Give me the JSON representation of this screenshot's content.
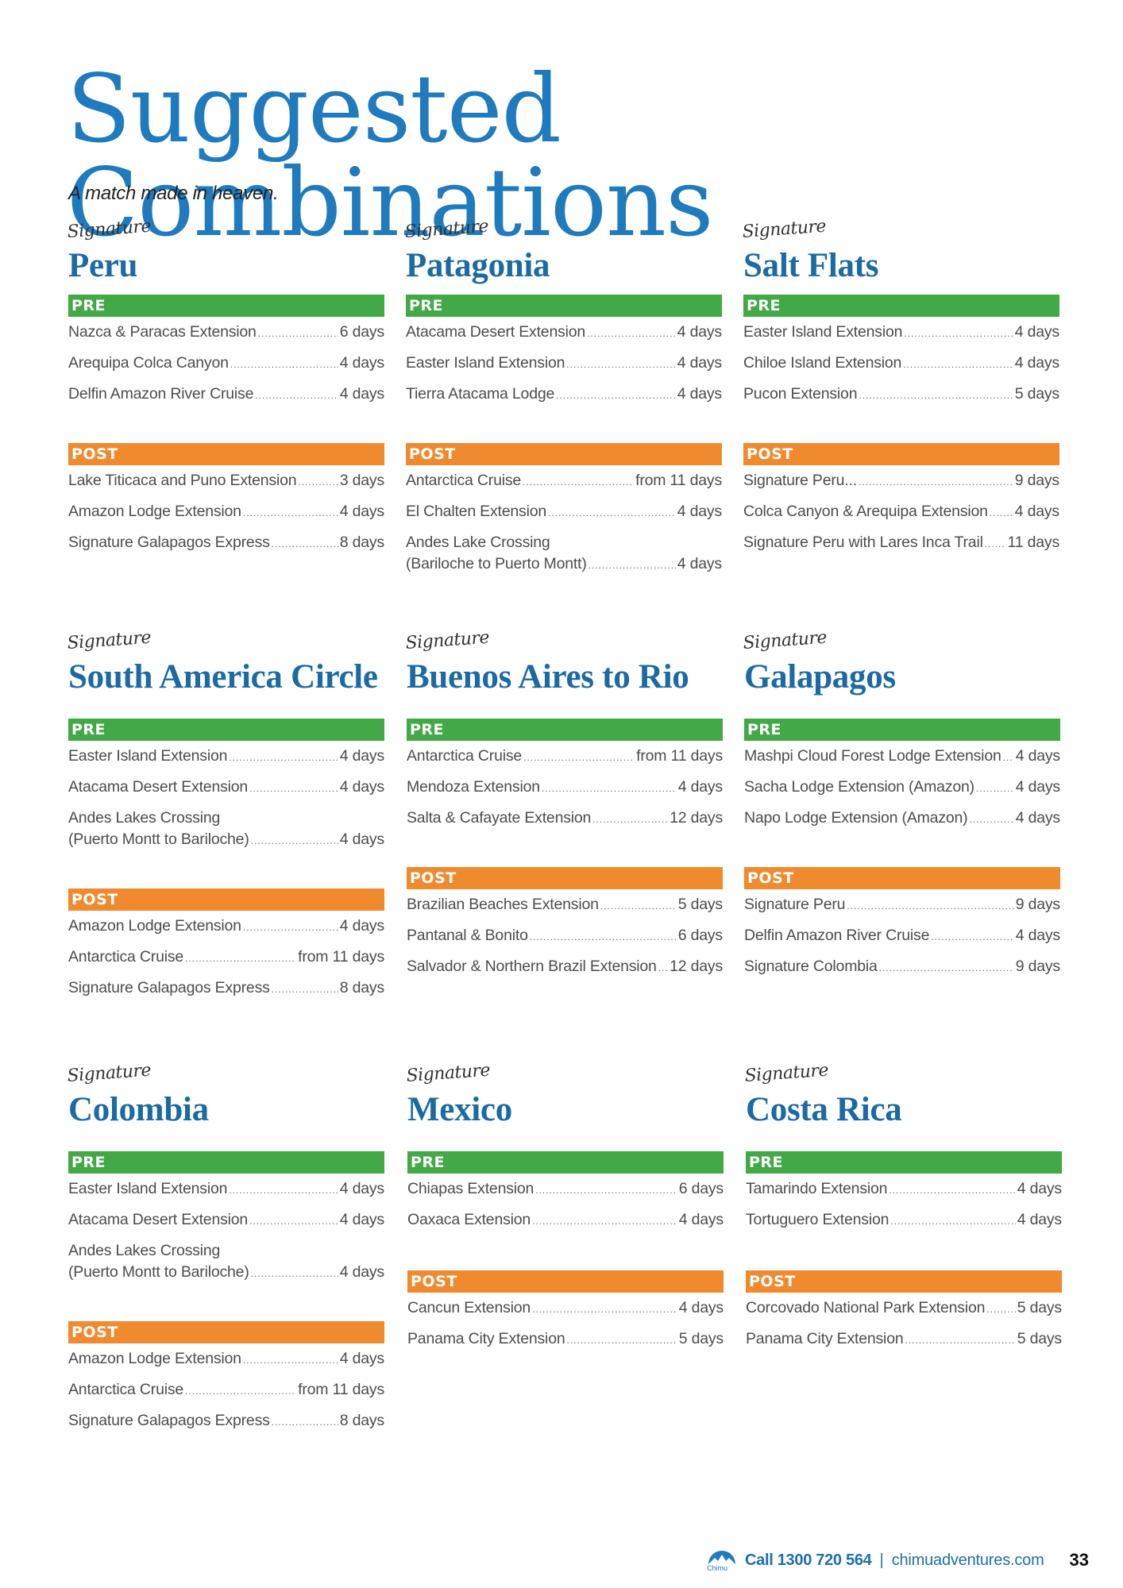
{
  "header": {
    "title": "Suggested Combinations",
    "subtitle": "A match made in heaven."
  },
  "colors": {
    "title_blue": "#1f7bbd",
    "destination_blue": "#1b6aa3",
    "pre_green": "#43a846",
    "post_orange": "#f08a2f"
  },
  "labels": {
    "signature": "Signature",
    "pre": "PRE",
    "post": "POST"
  },
  "cards": [
    {
      "title": "Peru",
      "pre": [
        {
          "name": "Nazca & Paracas Extension",
          "days": "6 days"
        },
        {
          "name": "Arequipa Colca Canyon",
          "days": "4 days"
        },
        {
          "name": "Delfin Amazon River Cruise",
          "days": "4 days"
        }
      ],
      "post": [
        {
          "name": "Lake Titicaca and Puno Extension",
          "days": "3 days"
        },
        {
          "name": "Amazon Lodge Extension",
          "days": "4 days"
        },
        {
          "name": "Signature Galapagos Express",
          "days": "8 days"
        }
      ]
    },
    {
      "title": "Patagonia",
      "pre": [
        {
          "name": "Atacama Desert Extension",
          "days": "4 days"
        },
        {
          "name": "Easter Island Extension",
          "days": "4 days"
        },
        {
          "name": "Tierra Atacama Lodge",
          "days": "4 days"
        }
      ],
      "post": [
        {
          "name": "Antarctica Cruise",
          "days": "from 11  days"
        },
        {
          "name": "El Chalten Extension",
          "days": "4 days"
        },
        {
          "name_line1": "Andes Lake Crossing",
          "name": "(Bariloche to Puerto Montt)",
          "days": "4 days"
        }
      ]
    },
    {
      "title": "Salt Flats",
      "pre": [
        {
          "name": "Easter Island Extension",
          "days": "4 days"
        },
        {
          "name": "Chiloe Island Extension",
          "days": "4 days"
        },
        {
          "name": "Pucon Extension",
          "days": "5 days"
        }
      ],
      "post": [
        {
          "name": "Signature Peru...",
          "days": "9 days"
        },
        {
          "name": "Colca Canyon & Arequipa Extension",
          "days": "4 days"
        },
        {
          "name": "Signature Peru with Lares Inca Trail",
          "days": "11 days"
        }
      ]
    },
    {
      "title": "South America Circle",
      "pre": [
        {
          "name": "Easter Island Extension",
          "days": "4 days"
        },
        {
          "name": "Atacama Desert Extension",
          "days": "4 days"
        },
        {
          "name_line1": "Andes Lakes Crossing",
          "name": "(Puerto Montt to Bariloche)",
          "days": "4 days"
        }
      ],
      "post": [
        {
          "name": "Amazon Lodge Extension",
          "days": "4 days"
        },
        {
          "name": "Antarctica Cruise",
          "days": "from 11  days"
        },
        {
          "name": "Signature Galapagos Express",
          "days": "8 days"
        }
      ]
    },
    {
      "title": "Buenos Aires to Rio",
      "pre": [
        {
          "name": "Antarctica Cruise",
          "days": "from 11  days"
        },
        {
          "name": "Mendoza Extension",
          "days": "4 days"
        },
        {
          "name": "Salta & Cafayate Extension",
          "days": "12 days"
        }
      ],
      "post": [
        {
          "name": "Brazilian Beaches Extension",
          "days": "5 days"
        },
        {
          "name": "Pantanal & Bonito",
          "days": "6 days"
        },
        {
          "name": "Salvador & Northern Brazil Extension",
          "days": "12 days"
        }
      ]
    },
    {
      "title": "Galapagos",
      "pre": [
        {
          "name": "Mashpi Cloud Forest Lodge Extension",
          "days": "4 days"
        },
        {
          "name": "Sacha Lodge Extension (Amazon)",
          "days": "4 days"
        },
        {
          "name": "Napo Lodge Extension (Amazon)",
          "days": "4 days"
        }
      ],
      "post": [
        {
          "name": "Signature Peru",
          "days": "9 days"
        },
        {
          "name": "Delfin Amazon River Cruise",
          "days": "4 days"
        },
        {
          "name": "Signature Colombia",
          "days": "9 days"
        }
      ]
    },
    {
      "title": "Colombia",
      "pre": [
        {
          "name": "Easter Island Extension",
          "days": "4 days"
        },
        {
          "name": "Atacama Desert Extension",
          "days": "4 days"
        },
        {
          "name_line1": "Andes Lakes Crossing",
          "name": "(Puerto Montt to Bariloche)",
          "days": "4 days"
        }
      ],
      "post": [
        {
          "name": "Amazon Lodge Extension",
          "days": "4 days"
        },
        {
          "name": "Antarctica Cruise",
          "days": "from 11  days"
        },
        {
          "name": "Signature Galapagos Express",
          "days": "8 days"
        }
      ]
    },
    {
      "title": "Mexico",
      "pre": [
        {
          "name": "Chiapas Extension",
          "days": "6 days"
        },
        {
          "name": "Oaxaca Extension",
          "days": "4 days"
        }
      ],
      "post": [
        {
          "name": "Cancun Extension",
          "days": "4 days"
        },
        {
          "name": "Panama City Extension",
          "days": "5 days"
        }
      ]
    },
    {
      "title": "Costa Rica",
      "pre": [
        {
          "name": "Tamarindo Extension",
          "days": "4 days"
        },
        {
          "name": "Tortuguero Extension",
          "days": "4 days"
        }
      ],
      "post": [
        {
          "name": "Corcovado National Park Extension",
          "days": "5 days"
        },
        {
          "name": "Panama City Extension",
          "days": "5 days"
        }
      ]
    }
  ],
  "footer": {
    "logo_text": "Chimu",
    "call": "Call 1300 720 564",
    "separator": "|",
    "website": "chimuadventures.com",
    "page_number": "33"
  }
}
